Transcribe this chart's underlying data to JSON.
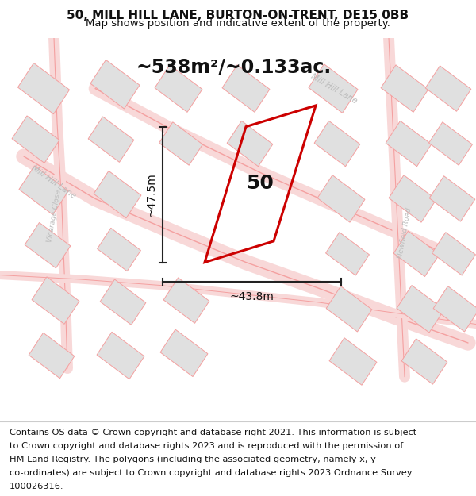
{
  "title": "50, MILL HILL LANE, BURTON-ON-TRENT, DE15 0BB",
  "subtitle": "Map shows position and indicative extent of the property.",
  "area_label": "~538m²/~0.133ac.",
  "width_label": "~43.8m",
  "height_label": "~47.5m",
  "property_number": "50",
  "footer_lines": [
    "Contains OS data © Crown copyright and database right 2021. This information is subject",
    "to Crown copyright and database rights 2023 and is reproduced with the permission of",
    "HM Land Registry. The polygons (including the associated geometry, namely x, y",
    "co-ordinates) are subject to Crown copyright and database rights 2023 Ordnance Survey",
    "100026316."
  ],
  "map_bg": "#ffffff",
  "property_outline_color": "#cc0000",
  "road_fill_color": "#f8d8d8",
  "road_line_color": "#f4a0a0",
  "building_fill": "#e0e0e0",
  "building_stroke": "#f4a0a0",
  "dimension_line_color": "#222222",
  "road_label_color": "#bbbbbb",
  "title_fontsize": 11,
  "subtitle_fontsize": 9.5,
  "area_fontsize": 17,
  "property_label_fontsize": 18,
  "dim_label_fontsize": 10,
  "footer_fontsize": 8.2
}
